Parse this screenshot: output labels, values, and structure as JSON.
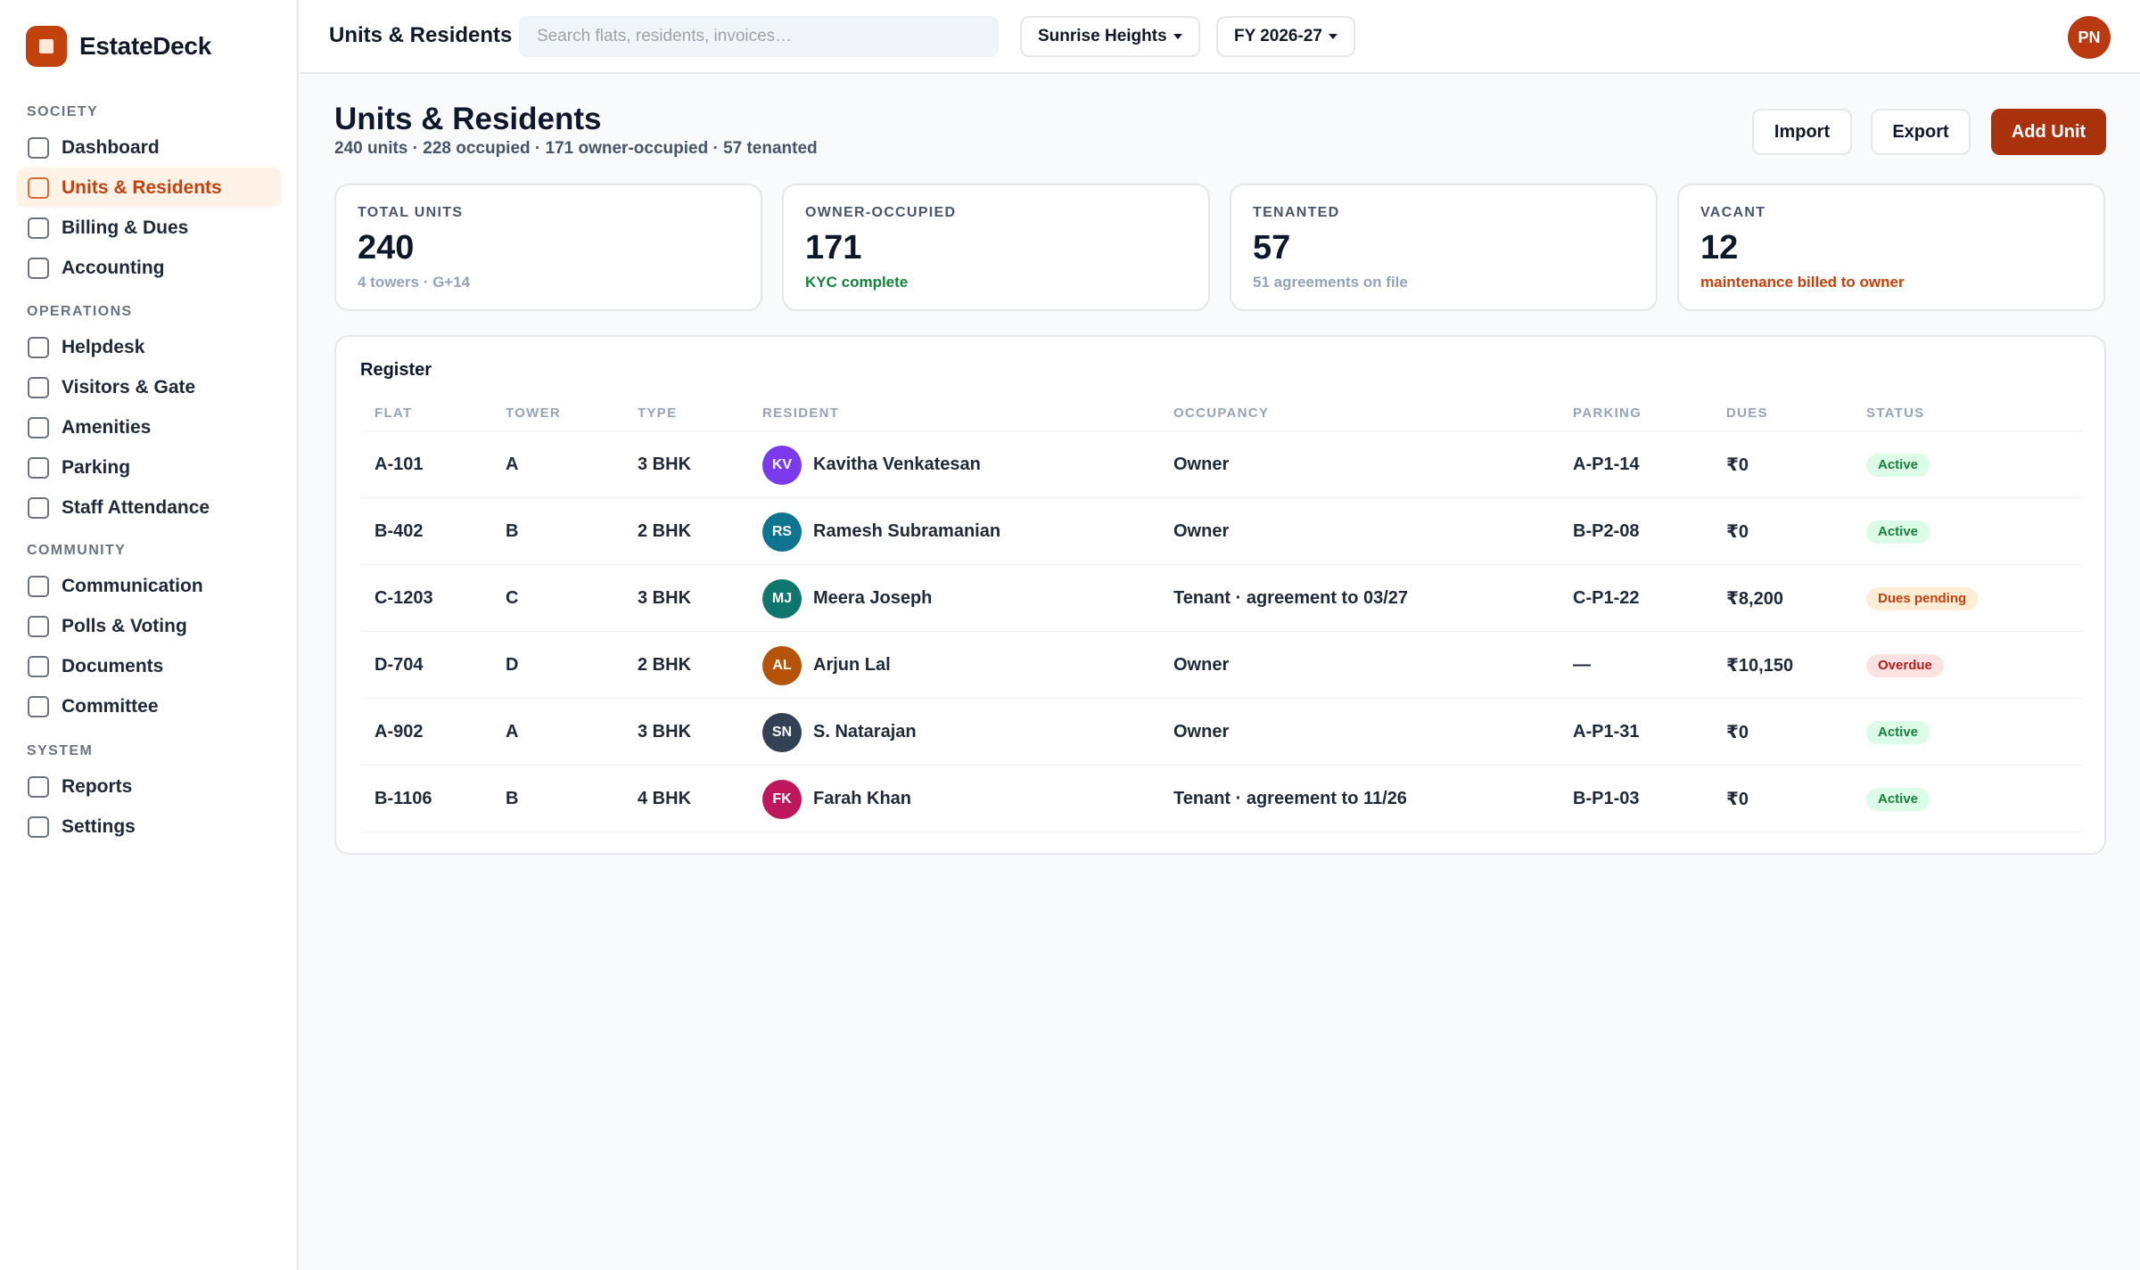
{
  "brand": {
    "name": "EstateDeck",
    "logo_color": "#c2410c"
  },
  "sidebar": {
    "sections": [
      {
        "label": "SOCIETY",
        "items": [
          "Dashboard",
          "Units & Residents",
          "Billing & Dues",
          "Accounting"
        ]
      },
      {
        "label": "OPERATIONS",
        "items": [
          "Helpdesk",
          "Visitors & Gate",
          "Amenities",
          "Parking",
          "Staff Attendance"
        ]
      },
      {
        "label": "COMMUNITY",
        "items": [
          "Communication",
          "Polls & Voting",
          "Documents",
          "Committee"
        ]
      },
      {
        "label": "SYSTEM",
        "items": [
          "Reports",
          "Settings"
        ]
      }
    ],
    "active_item": "Units & Residents"
  },
  "topbar": {
    "title": "Units & Residents",
    "search_placeholder": "Search flats, residents, invoices…",
    "society_select": "Sunrise Heights",
    "fy_select": "FY 2026-27",
    "user_initials": "PN"
  },
  "page": {
    "title": "Units & Residents",
    "subtitle": "240 units · 228 occupied · 171 owner-occupied · 57 tenanted",
    "buttons": {
      "import": "Import",
      "export": "Export",
      "add": "Add Unit"
    }
  },
  "stats": [
    {
      "label": "TOTAL UNITS",
      "value": "240",
      "note": "4 towers · G+14",
      "tone": "muted"
    },
    {
      "label": "OWNER-OCCUPIED",
      "value": "171",
      "note": "KYC complete",
      "tone": "green"
    },
    {
      "label": "TENANTED",
      "value": "57",
      "note": "51 agreements on file",
      "tone": "muted"
    },
    {
      "label": "VACANT",
      "value": "12",
      "note": "maintenance billed to owner",
      "tone": "orange"
    }
  ],
  "register": {
    "title": "Register",
    "columns": [
      "FLAT",
      "TOWER",
      "TYPE",
      "RESIDENT",
      "OCCUPANCY",
      "PARKING",
      "DUES",
      "STATUS"
    ],
    "rows": [
      {
        "flat": "A-101",
        "tower": "A",
        "type": "3 BHK",
        "initials": "KV",
        "avatar_color": "#7c3aed",
        "resident": "Kavitha Venkatesan",
        "occupancy": "Owner",
        "parking": "A-P1-14",
        "dues": "₹0",
        "status": "Active",
        "status_kind": "active"
      },
      {
        "flat": "B-402",
        "tower": "B",
        "type": "2 BHK",
        "initials": "RS",
        "avatar_color": "#0e7490",
        "resident": "Ramesh Subramanian",
        "occupancy": "Owner",
        "parking": "B-P2-08",
        "dues": "₹0",
        "status": "Active",
        "status_kind": "active"
      },
      {
        "flat": "C-1203",
        "tower": "C",
        "type": "3 BHK",
        "initials": "MJ",
        "avatar_color": "#0f766e",
        "resident": "Meera Joseph",
        "occupancy": "Tenant · agreement to 03/27",
        "parking": "C-P1-22",
        "dues": "₹8,200",
        "status": "Dues pending",
        "status_kind": "pending"
      },
      {
        "flat": "D-704",
        "tower": "D",
        "type": "2 BHK",
        "initials": "AL",
        "avatar_color": "#b45309",
        "resident": "Arjun Lal",
        "occupancy": "Owner",
        "parking": "—",
        "dues": "₹10,150",
        "status": "Overdue",
        "status_kind": "overdue"
      },
      {
        "flat": "A-902",
        "tower": "A",
        "type": "3 BHK",
        "initials": "SN",
        "avatar_color": "#334155",
        "resident": "S. Natarajan",
        "occupancy": "Owner",
        "parking": "A-P1-31",
        "dues": "₹0",
        "status": "Active",
        "status_kind": "active"
      },
      {
        "flat": "B-1106",
        "tower": "B",
        "type": "4 BHK",
        "initials": "FK",
        "avatar_color": "#be185d",
        "resident": "Farah Khan",
        "occupancy": "Tenant · agreement to 11/26",
        "parking": "B-P1-03",
        "dues": "₹0",
        "status": "Active",
        "status_kind": "active"
      }
    ]
  },
  "colors": {
    "accent": "#c2410c",
    "primary_button": "#a9320c",
    "active_badge_bg": "#dcfce7",
    "active_badge_fg": "#15803d",
    "pending_badge_bg": "#ffedd5",
    "pending_badge_fg": "#c2410c",
    "overdue_badge_bg": "#fee2e2",
    "overdue_badge_fg": "#b91c1c"
  }
}
